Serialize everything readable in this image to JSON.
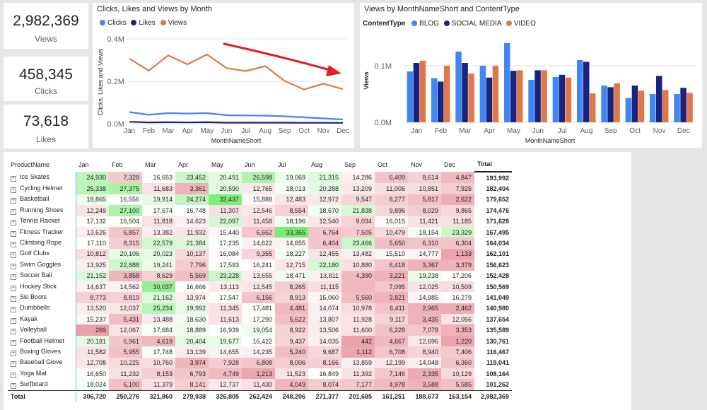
{
  "kpis": [
    {
      "value": "2,982,369",
      "label": "Views"
    },
    {
      "value": "458,345",
      "label": "Clicks"
    },
    {
      "value": "73,618",
      "label": "Likes"
    }
  ],
  "line_chart": {
    "title": "Clicks, Likes and Views by Month",
    "legend": [
      {
        "name": "Clicks",
        "color": "#4285f4"
      },
      {
        "name": "Likes",
        "color": "#1a237e"
      },
      {
        "name": "Views",
        "color": "#e07748"
      }
    ],
    "ylabel": "Clicks, Likes and Views",
    "xlabel": "MonthNameShort",
    "yticks": [
      "0.4M",
      "0.2M",
      "0.0M"
    ]
  },
  "bar_chart": {
    "title": "Views by MonthNameShort and ContentType",
    "legend_title": "ContentType",
    "legend": [
      {
        "name": "BLOG",
        "color": "#4285f4"
      },
      {
        "name": "SOCIAL MEDIA",
        "color": "#1a237e"
      },
      {
        "name": "VIDEO",
        "color": "#e07748"
      }
    ],
    "ylabel": "Views",
    "xlabel": "MonthNameShort",
    "yticks": [
      "0.1M",
      "0.0M"
    ]
  },
  "chart_data": [
    {
      "type": "line",
      "title": "Clicks, Likes and Views by Month",
      "xlabel": "MonthNameShort",
      "ylabel": "Clicks, Likes and Views",
      "categories": [
        "Jan",
        "Feb",
        "Mar",
        "Apr",
        "May",
        "Jun",
        "Jul",
        "Aug",
        "Sep",
        "Oct",
        "Nov",
        "Dec"
      ],
      "ylim": [
        0,
        400000
      ],
      "series": [
        {
          "name": "Clicks",
          "color": "#4285f4",
          "values": [
            55000,
            42000,
            50000,
            48000,
            50000,
            40000,
            39000,
            38000,
            35000,
            30000,
            25000,
            20000
          ]
        },
        {
          "name": "Likes",
          "color": "#1a237e",
          "values": [
            9000,
            6000,
            7000,
            6000,
            7000,
            5000,
            5000,
            5000,
            5000,
            4500,
            4500,
            4000
          ]
        },
        {
          "name": "Views",
          "color": "#e07748",
          "values": [
            306720,
            250276,
            321860,
            279938,
            326805,
            262424,
            248206,
            271377,
            201685,
            161251,
            188673,
            163154
          ]
        }
      ],
      "annotation": "red arrow indicating downward trend"
    },
    {
      "type": "bar",
      "title": "Views by MonthNameShort and ContentType",
      "xlabel": "MonthNameShort",
      "ylabel": "Views",
      "categories": [
        "Jan",
        "Feb",
        "Mar",
        "Apr",
        "May",
        "Jun",
        "Jul",
        "Aug",
        "Sep",
        "Oct",
        "Nov",
        "Dec"
      ],
      "ylim": [
        0,
        150000
      ],
      "series": [
        {
          "name": "BLOG",
          "color": "#4285f4",
          "values": [
            90000,
            78000,
            125000,
            100000,
            140000,
            75000,
            80000,
            110000,
            65000,
            43000,
            50000,
            50000
          ]
        },
        {
          "name": "SOCIAL MEDIA",
          "color": "#1a237e",
          "values": [
            105000,
            72000,
            105000,
            79000,
            91000,
            92000,
            84000,
            107000,
            62000,
            65000,
            82000,
            61000
          ]
        },
        {
          "name": "VIDEO",
          "color": "#e07748",
          "values": [
            109000,
            100000,
            86000,
            100000,
            92000,
            92000,
            79000,
            51000,
            69000,
            56000,
            57000,
            52000
          ]
        }
      ]
    },
    {
      "type": "table",
      "columns": [
        "ProductName",
        "Jan",
        "Feb",
        "Mar",
        "Apr",
        "May",
        "Jun",
        "Jul",
        "Aug",
        "Sep",
        "Oct",
        "Nov",
        "Dec",
        "Total"
      ],
      "rows": [
        [
          "Ice Skates",
          "24,930",
          "7,328",
          "16,653",
          "23,452",
          "20,491",
          "26,598",
          "19,069",
          "21,315",
          "14,286",
          "6,409",
          "8,614",
          "4,847",
          "193,992"
        ],
        [
          "Cycling Helmet",
          "25,338",
          "27,375",
          "11,683",
          "3,361",
          "20,590",
          "12,765",
          "18,013",
          "20,288",
          "13,209",
          "11,006",
          "10,851",
          "7,925",
          "182,404"
        ],
        [
          "Basketball",
          "18,865",
          "16,556",
          "19,914",
          "24,274",
          "32,437",
          "15,888",
          "12,483",
          "12,972",
          "9,547",
          "8,277",
          "5,817",
          "2,622",
          "179,652"
        ],
        [
          "Running Shoes",
          "12,249",
          "27,100",
          "17,674",
          "16,748",
          "11,307",
          "12,546",
          "8,554",
          "18,670",
          "21,838",
          "9,896",
          "8,029",
          "9,865",
          "174,476"
        ],
        [
          "Tennis Racket",
          "17,132",
          "16,504",
          "11,818",
          "14,623",
          "22,097",
          "11,458",
          "18,196",
          "12,540",
          "9,034",
          "16,015",
          "11,421",
          "11,185",
          "171,628"
        ],
        [
          "Fitness Tracker",
          "13,626",
          "6,857",
          "13,382",
          "11,932",
          "15,440",
          "6,662",
          "33,365",
          "6,764",
          "7,505",
          "10,479",
          "18,154",
          "23,329",
          "167,495"
        ],
        [
          "Climbing Rope",
          "17,110",
          "8,315",
          "22,579",
          "21,384",
          "17,235",
          "14,622",
          "14,655",
          "6,404",
          "23,466",
          "5,650",
          "6,310",
          "6,304",
          "164,034"
        ],
        [
          "Golf Clubs",
          "10,812",
          "20,106",
          "20,023",
          "10,137",
          "16,084",
          "9,355",
          "18,227",
          "12,455",
          "13,482",
          "15,510",
          "14,777",
          "1,133",
          "162,101"
        ],
        [
          "Swim Goggles",
          "13,925",
          "22,888",
          "19,241",
          "7,796",
          "17,593",
          "16,241",
          "12,715",
          "22,180",
          "10,880",
          "6,418",
          "3,367",
          "3,379",
          "156,623"
        ],
        [
          "Soccer Ball",
          "21,152",
          "3,858",
          "8,629",
          "5,569",
          "23,228",
          "13,655",
          "18,471",
          "13,811",
          "4,390",
          "3,221",
          "19,238",
          "17,206",
          "152,428"
        ],
        [
          "Hockey Stick",
          "14,637",
          "14,562",
          "30,037",
          "16,666",
          "13,113",
          "12,545",
          "8,265",
          "11,115",
          "",
          "7,095",
          "12,025",
          "10,509",
          "150,569"
        ],
        [
          "Ski Boots",
          "8,773",
          "8,819",
          "21,162",
          "13,974",
          "17,547",
          "6,156",
          "8,913",
          "15,060",
          "5,560",
          "3,821",
          "14,985",
          "16,279",
          "141,049"
        ],
        [
          "Dumbbells",
          "13,520",
          "12,037",
          "25,234",
          "19,992",
          "11,345",
          "17,481",
          "4,481",
          "14,074",
          "10,978",
          "6,411",
          "2,965",
          "2,462",
          "140,980"
        ],
        [
          "Kayak",
          "15,237",
          "5,431",
          "13,488",
          "18,630",
          "11,613",
          "17,290",
          "5,622",
          "13,807",
          "11,928",
          "9,117",
          "3,435",
          "12,056",
          "137,654"
        ],
        [
          "Volleyball",
          "269",
          "12,067",
          "17,684",
          "18,889",
          "16,939",
          "19,054",
          "8,922",
          "13,506",
          "11,600",
          "6,228",
          "7,078",
          "3,353",
          "135,589"
        ],
        [
          "Football Helmet",
          "20,181",
          "6,961",
          "4,619",
          "20,404",
          "19,677",
          "16,422",
          "9,437",
          "14,035",
          "442",
          "4,667",
          "12,696",
          "1,220",
          "130,761"
        ],
        [
          "Boxing Gloves",
          "11,582",
          "5,955",
          "17,748",
          "13,139",
          "14,655",
          "14,235",
          "5,240",
          "9,687",
          "1,112",
          "6,708",
          "8,940",
          "7,406",
          "116,467"
        ],
        [
          "Baseball Glove",
          "12,708",
          "10,225",
          "10,760",
          "3,974",
          "7,928",
          "6,808",
          "8,006",
          "8,166",
          "13,859",
          "12,199",
          "14,048",
          "6,360",
          "115,041"
        ],
        [
          "Yoga Mat",
          "16,650",
          "11,232",
          "8,153",
          "6,793",
          "4,749",
          "1,213",
          "11,523",
          "16,849",
          "11,392",
          "7,146",
          "2,335",
          "10,129",
          "108,164"
        ],
        [
          "Surfboard",
          "18,024",
          "6,100",
          "11,379",
          "8,141",
          "12,737",
          "11,430",
          "4,049",
          "8,074",
          "7,177",
          "4,978",
          "3,588",
          "5,585",
          "101,262"
        ]
      ],
      "total_row": [
        "Total",
        "306,720",
        "250,276",
        "321,860",
        "279,938",
        "326,805",
        "262,424",
        "248,206",
        "271,377",
        "201,685",
        "161,251",
        "188,673",
        "163,154",
        "2,982,369"
      ]
    }
  ]
}
